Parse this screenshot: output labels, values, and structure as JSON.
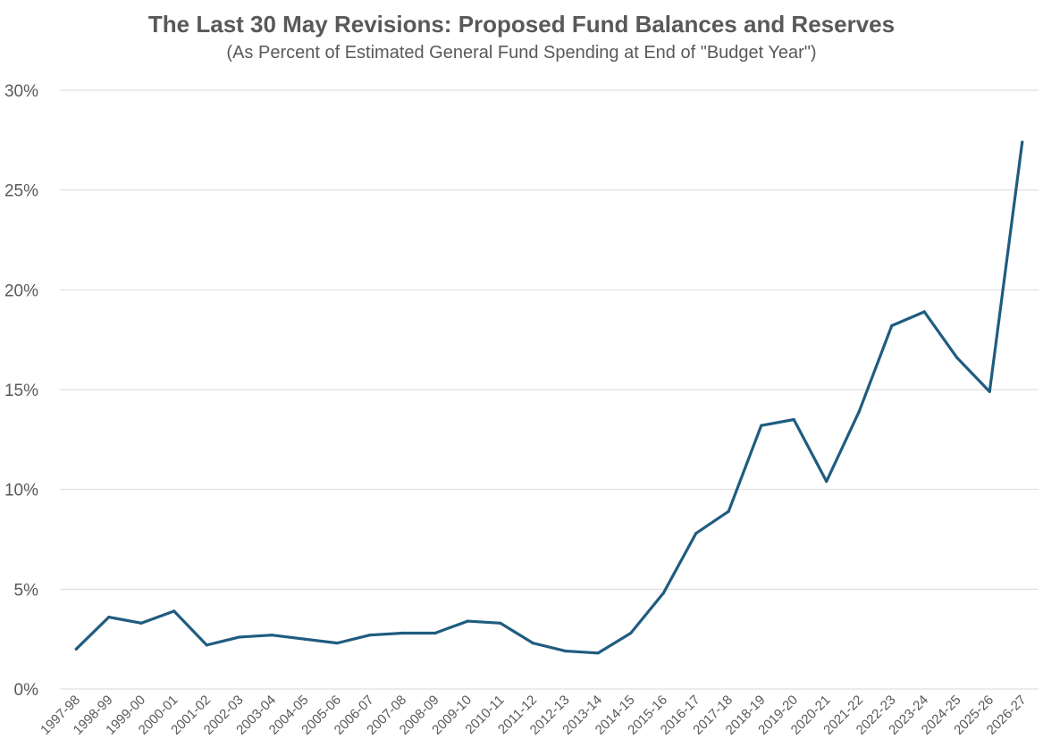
{
  "chart_data": {
    "type": "line",
    "title": "The Last 30 May Revisions: Proposed Fund Balances and Reserves",
    "subtitle": "(As Percent of Estimated General Fund Spending at End of \"Budget Year\")",
    "xlabel": "",
    "ylabel": "",
    "ylim": [
      0,
      30
    ],
    "yticks": [
      0,
      5,
      10,
      15,
      20,
      25,
      30
    ],
    "ytick_labels": [
      "0%",
      "5%",
      "10%",
      "15%",
      "20%",
      "25%",
      "30%"
    ],
    "grid": true,
    "legend": "none",
    "line_color": "#1f5c7f",
    "categories": [
      "1997-98",
      "1998-99",
      "1999-00",
      "2000-01",
      "2001-02",
      "2002-03",
      "2003-04",
      "2004-05",
      "2005-06",
      "2006-07",
      "2007-08",
      "2008-09",
      "2009-10",
      "2010-11",
      "2011-12",
      "2012-13",
      "2013-14",
      "2014-15",
      "2015-16",
      "2016-17",
      "2017-18",
      "2018-19",
      "2019-20",
      "2020-21",
      "2021-22",
      "2022-23",
      "2023-24",
      "2024-25",
      "2025-26",
      "2026-27"
    ],
    "series": [
      {
        "values": [
          2.0,
          3.6,
          3.3,
          3.9,
          2.2,
          2.6,
          2.7,
          2.5,
          2.3,
          2.7,
          2.8,
          2.8,
          3.4,
          3.3,
          2.3,
          1.9,
          1.8,
          2.8,
          4.8,
          7.8,
          8.9,
          13.2,
          13.5,
          10.4,
          13.9,
          18.2,
          18.9,
          16.6,
          14.9,
          27.4
        ]
      }
    ]
  }
}
